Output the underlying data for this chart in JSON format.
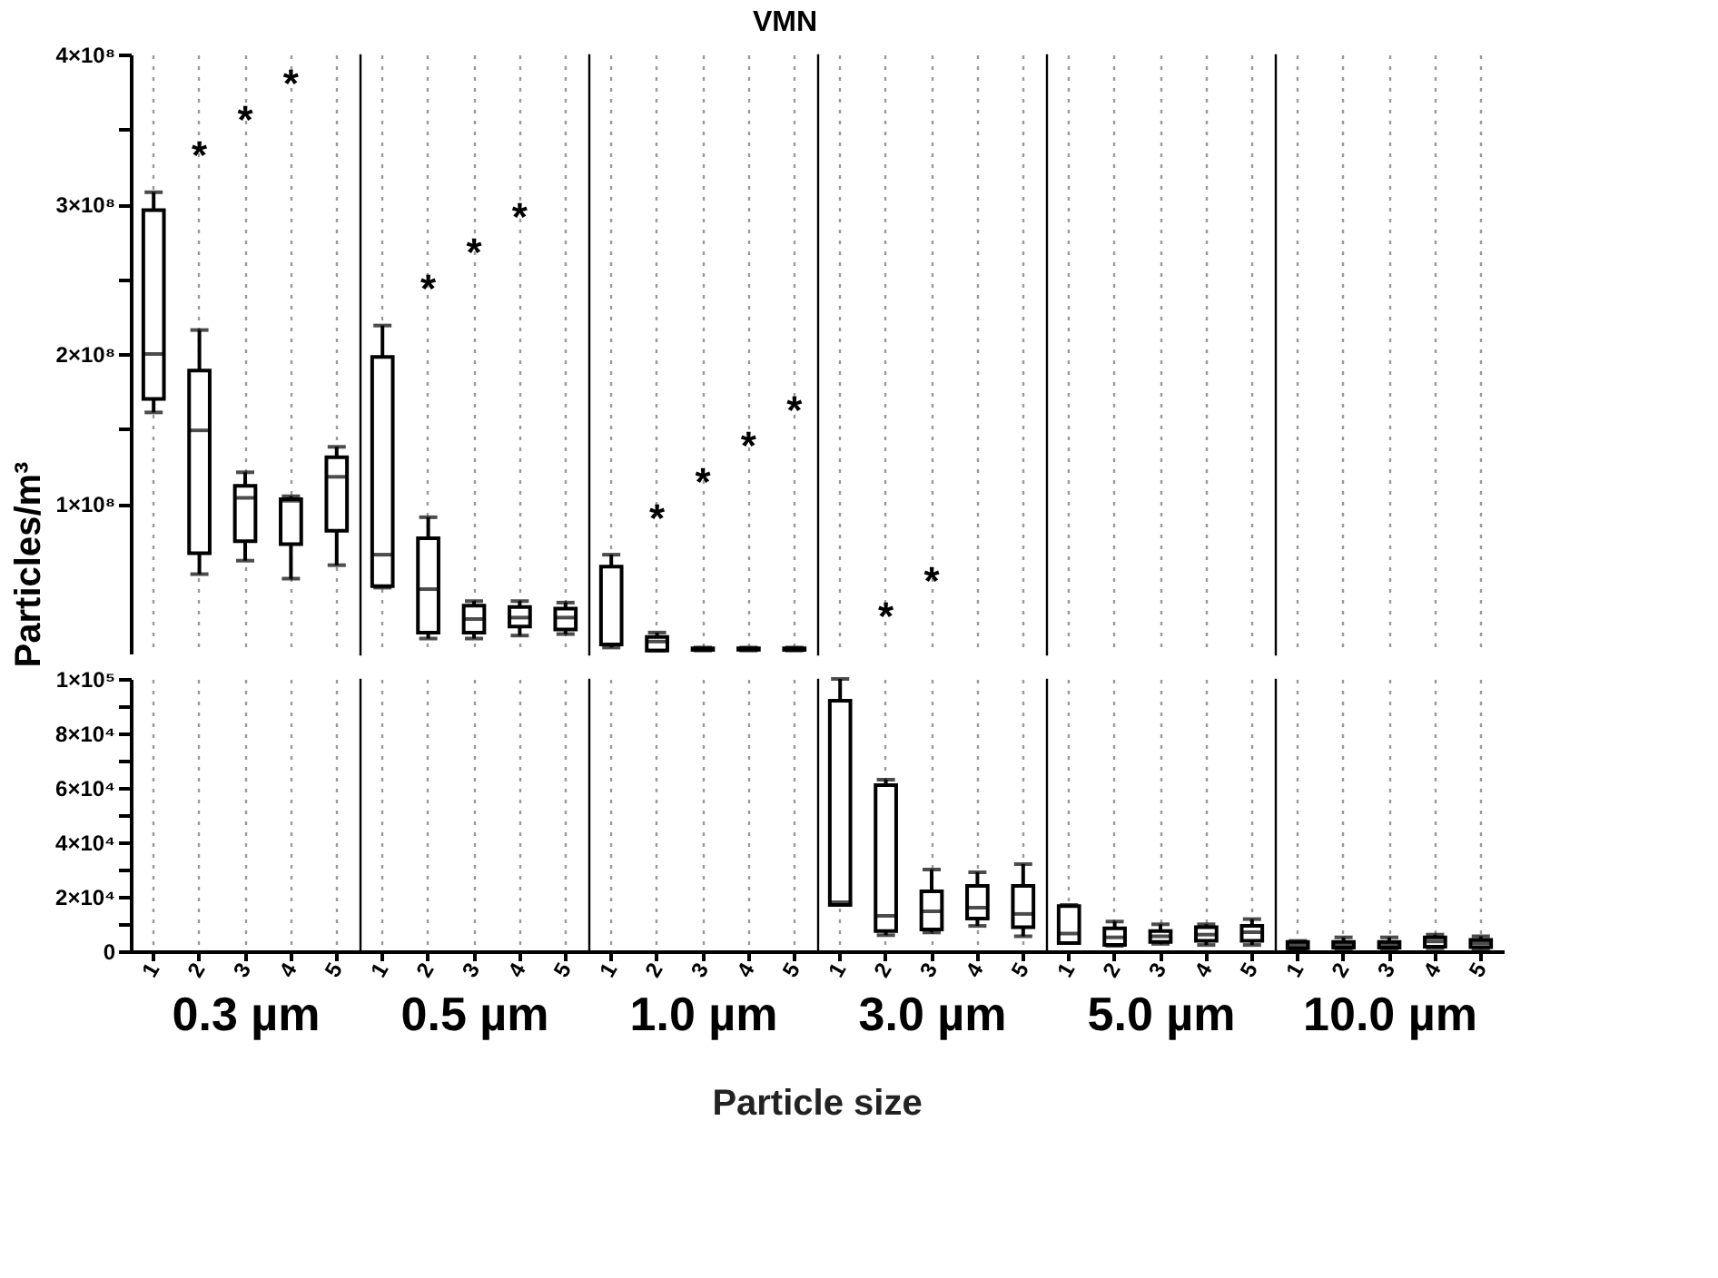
{
  "chart_data": [
    {
      "type": "box",
      "ylabel": "Particles/m³",
      "categories": [
        "1",
        "2",
        "3",
        "4",
        "5"
      ],
      "ylim": [
        0,
        400000000.0
      ],
      "yticks": [
        {
          "value": 100000000.0,
          "label": "1×10⁸"
        },
        {
          "value": 150000000.0,
          "label": null
        },
        {
          "value": 200000000.0,
          "label": "2×10⁸"
        },
        {
          "value": 250000000.0,
          "label": null
        },
        {
          "value": 300000000.0,
          "label": "3×10⁸"
        },
        {
          "value": 350000000.0,
          "label": null
        },
        {
          "value": 400000000.0,
          "label": "4×10⁸"
        }
      ],
      "tick_labels": "y",
      "grid": "x",
      "boxes": [
        {
          "low": 161000000.0,
          "q1": 170000000.0,
          "median": 200000000.0,
          "q3": 296000000.0,
          "high": 308000000.0
        },
        {
          "low": 53000000.0,
          "q1": 67000000.0,
          "median": 149000000.0,
          "q3": 189000000.0,
          "high": 216000000.0
        },
        {
          "low": 62000000.0,
          "q1": 75000000.0,
          "median": 104000000.0,
          "q3": 112000000.0,
          "high": 121000000.0
        },
        {
          "low": 50000000.0,
          "q1": 73000000.0,
          "median": 102000000.0,
          "q3": 103000000.0,
          "high": 105000000.0
        },
        {
          "low": 59000000.0,
          "q1": 82000000.0,
          "median": 118000000.0,
          "q3": 131000000.0,
          "high": 138000000.0
        }
      ],
      "annotations": [
        "*",
        "*",
        "*"
      ]
    },
    {
      "type": "box",
      "categories": [
        "1",
        "2",
        "3",
        "4",
        "5"
      ],
      "ylim": [
        0,
        400000000.0
      ],
      "tick_labels": false,
      "grid": "x",
      "boxes": [
        {
          "low": 44000000.0,
          "q1": 45000000.0,
          "median": 66000000.0,
          "q3": 198000000.0,
          "high": 219000000.0
        },
        {
          "low": 10000000.0,
          "q1": 14000000.0,
          "median": 43000000.0,
          "q3": 77000000.0,
          "high": 91000000.0
        },
        {
          "low": 10000000.0,
          "q1": 14000000.0,
          "median": 23000000.0,
          "q3": 32000000.0,
          "high": 35000000.0
        },
        {
          "low": 12000000.0,
          "q1": 18000000.0,
          "median": 24000000.0,
          "q3": 31000000.0,
          "high": 35000000.0
        },
        {
          "low": 13000000.0,
          "q1": 16000000.0,
          "median": 24000000.0,
          "q3": 30000000.0,
          "high": 34000000.0
        }
      ],
      "annotations": [
        "*",
        "*",
        "*"
      ]
    },
    {
      "type": "box",
      "title": "VMN",
      "categories": [
        "1",
        "2",
        "3",
        "4",
        "5"
      ],
      "ylim": [
        0,
        400000000.0
      ],
      "tick_labels": false,
      "grid": "x",
      "boxes": [
        {
          "low": 4000000.0,
          "q1": 6000000.0,
          "median": 6000000.0,
          "q3": 58000000.0,
          "high": 66000000.0
        },
        {
          "low": 2000000.0,
          "q1": 2000000.0,
          "median": 8000000.0,
          "q3": 11000000.0,
          "high": 14000000.0
        },
        {
          "low": 2000000.0,
          "q1": 2500000.0,
          "median": 3000000.0,
          "q3": 3500000.0,
          "high": 4000000.0
        },
        {
          "low": 2000000.0,
          "q1": 2500000.0,
          "median": 3000000.0,
          "q3": 3500000.0,
          "high": 4000000.0
        },
        {
          "low": 2000000.0,
          "q1": 2500000.0,
          "median": 3000000.0,
          "q3": 3500000.0,
          "high": 4000000.0
        }
      ],
      "annotations": [
        "*",
        "*",
        "*",
        "*"
      ]
    },
    {
      "type": "box",
      "categories": [
        "1",
        "2",
        "3",
        "4",
        "5"
      ],
      "ylim": [
        0,
        400000000.0
      ],
      "tick_labels": false,
      "grid": "x",
      "boxes": [
        null,
        null,
        null,
        null,
        null
      ],
      "annotations": [
        "*",
        "*"
      ]
    },
    {
      "type": "box",
      "categories": [
        "1",
        "2",
        "3",
        "4",
        "5"
      ],
      "ylim": [
        0,
        400000000.0
      ],
      "tick_labels": false,
      "grid": "x",
      "boxes": [
        null,
        null,
        null,
        null,
        null
      ]
    },
    {
      "type": "box",
      "categories": [
        "1",
        "2",
        "3",
        "4",
        "5"
      ],
      "ylim": [
        0,
        400000000.0
      ],
      "tick_labels": false,
      "grid": "x",
      "boxes": [
        null,
        null,
        null,
        null,
        null
      ]
    },
    {
      "type": "box",
      "xlabel": "0.3 µm",
      "categories": [
        "1",
        "2",
        "3",
        "4",
        "5"
      ],
      "ylim": [
        0,
        100000.0
      ],
      "yticks": [
        {
          "value": 0,
          "label": "0"
        },
        {
          "value": 10000.0,
          "label": null
        },
        {
          "value": 20000.0,
          "label": "2×10⁴"
        },
        {
          "value": 30000.0,
          "label": null
        },
        {
          "value": 40000.0,
          "label": "4×10⁴"
        },
        {
          "value": 50000.0,
          "label": null
        },
        {
          "value": 60000.0,
          "label": "6×10⁴"
        },
        {
          "value": 70000.0,
          "label": null
        },
        {
          "value": 80000.0,
          "label": "8×10⁴"
        },
        {
          "value": 90000.0,
          "label": null
        },
        {
          "value": 100000.0,
          "label": "1×10⁵"
        }
      ],
      "grid": "x",
      "boxes": [
        null,
        null,
        null,
        null,
        null
      ]
    },
    {
      "type": "box",
      "xlabel": "0.5 µm",
      "categories": [
        "1",
        "2",
        "3",
        "4",
        "5"
      ],
      "ylim": [
        0,
        100000.0
      ],
      "tick_labels": "x",
      "grid": "x",
      "boxes": [
        null,
        null,
        null,
        null,
        null
      ]
    },
    {
      "type": "box",
      "xlabel": "1.0 µm",
      "categories": [
        "1",
        "2",
        "3",
        "4",
        "5"
      ],
      "ylim": [
        0,
        100000.0
      ],
      "tick_labels": "x",
      "grid": "x",
      "boxes": [
        null,
        null,
        null,
        null,
        null
      ],
      "annotations": [
        "Particle size"
      ]
    },
    {
      "type": "box",
      "xlabel": "3.0 µm",
      "categories": [
        "1",
        "2",
        "3",
        "4",
        "5"
      ],
      "ylim": [
        0,
        100000.0
      ],
      "tick_labels": "x",
      "grid": "x",
      "boxes": [
        {
          "low": 17000,
          "q1": 17000,
          "median": 18000,
          "q3": 92000,
          "high": 100000
        },
        {
          "low": 5900,
          "q1": 7400,
          "median": 13000,
          "q3": 61000,
          "high": 63000
        },
        {
          "low": 6900,
          "q1": 8000,
          "median": 14700,
          "q3": 22000,
          "high": 30000
        },
        {
          "low": 9300,
          "q1": 12000,
          "median": 16000,
          "q3": 24000,
          "high": 29000
        },
        {
          "low": 5500,
          "q1": 8800,
          "median": 13700,
          "q3": 24000,
          "high": 32000
        }
      ]
    },
    {
      "type": "box",
      "xlabel": "5.0 µm",
      "categories": [
        "1",
        "2",
        "3",
        "4",
        "5"
      ],
      "ylim": [
        0,
        100000.0
      ],
      "tick_labels": "x",
      "grid": "x",
      "boxes": [
        {
          "low": 3000,
          "q1": 3000,
          "median": 6500,
          "q3": 16600,
          "high": 17000
        },
        {
          "low": 2000,
          "q1": 2300,
          "median": 5100,
          "q3": 8400,
          "high": 10900
        },
        {
          "low": 2700,
          "q1": 3400,
          "median": 5500,
          "q3": 7400,
          "high": 9900
        },
        {
          "low": 2300,
          "q1": 3800,
          "median": 6100,
          "q3": 8800,
          "high": 9900
        },
        {
          "low": 2300,
          "q1": 3800,
          "median": 7000,
          "q3": 9300,
          "high": 11800
        }
      ]
    },
    {
      "type": "box",
      "xlabel": "10.0 µm",
      "categories": [
        "1",
        "2",
        "3",
        "4",
        "5"
      ],
      "ylim": [
        0,
        100000.0
      ],
      "tick_labels": "x",
      "grid": "x",
      "boxes": [
        {
          "low": 800,
          "q1": 1100,
          "median": 2300,
          "q3": 3400,
          "high": 3800
        },
        {
          "low": 800,
          "q1": 1300,
          "median": 2300,
          "q3": 3400,
          "high": 5100
        },
        {
          "low": 800,
          "q1": 1300,
          "median": 2300,
          "q3": 3400,
          "high": 5100
        },
        {
          "low": 1100,
          "q1": 1700,
          "median": 3600,
          "q3": 5100,
          "high": 6100
        },
        {
          "low": 800,
          "q1": 1500,
          "median": 3000,
          "q3": 4200,
          "high": 5500
        }
      ]
    }
  ]
}
